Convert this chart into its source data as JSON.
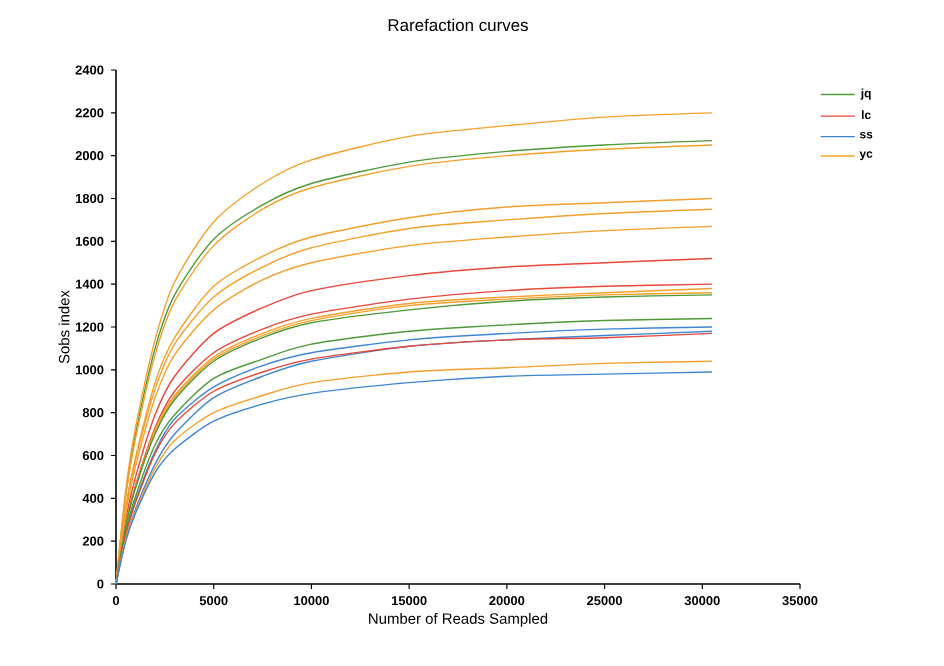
{
  "chart_data": {
    "type": "line",
    "title": "Rarefaction curves",
    "xlabel": "Number of Reads Sampled",
    "ylabel": "Sobs index",
    "x": [
      0,
      500,
      1000,
      2000,
      3000,
      5000,
      7500,
      10000,
      15000,
      20000,
      25000,
      30500
    ],
    "xlim": [
      0,
      35000
    ],
    "xticks": [
      0,
      5000,
      10000,
      15000,
      20000,
      25000,
      30000,
      35000
    ],
    "ylim": [
      0,
      2400
    ],
    "yticks": [
      0,
      200,
      400,
      600,
      800,
      1000,
      1200,
      1400,
      1600,
      1800,
      2000,
      2200,
      2400
    ],
    "grid": false,
    "legend": "top right",
    "marker": "none",
    "line_style": "solid",
    "series": [
      {
        "name": "jq",
        "color": "#4e9a3a",
        "values": [
          0,
          420,
          700,
          1100,
          1350,
          1610,
          1770,
          1870,
          1970,
          2020,
          2050,
          2070
        ]
      },
      {
        "name": "lc",
        "color": "#e8473a",
        "values": [
          0,
          300,
          500,
          790,
          970,
          1170,
          1290,
          1370,
          1440,
          1480,
          1500,
          1520
        ]
      },
      {
        "name": "ss",
        "color": "#3f86d2",
        "values": [
          0,
          240,
          390,
          620,
          770,
          920,
          1020,
          1080,
          1140,
          1170,
          1190,
          1200
        ]
      },
      {
        "name": "yc",
        "color": "#f5a02c",
        "values": [
          0,
          440,
          730,
          1140,
          1410,
          1690,
          1870,
          1980,
          2090,
          2140,
          2180,
          2200
        ]
      },
      {
        "color": "#f5a02c",
        "values": [
          0,
          410,
          680,
          1070,
          1320,
          1580,
          1750,
          1850,
          1950,
          2000,
          2030,
          2050
        ]
      },
      {
        "color": "#f5a02c",
        "values": [
          0,
          360,
          590,
          940,
          1150,
          1390,
          1530,
          1620,
          1710,
          1760,
          1780,
          1800
        ]
      },
      {
        "color": "#f5a02c",
        "values": [
          0,
          350,
          580,
          910,
          1120,
          1340,
          1480,
          1570,
          1660,
          1700,
          1730,
          1750
        ]
      },
      {
        "color": "#f5a02c",
        "values": [
          0,
          330,
          550,
          870,
          1070,
          1280,
          1420,
          1500,
          1580,
          1620,
          1650,
          1670
        ]
      },
      {
        "color": "#e8473a",
        "values": [
          0,
          280,
          460,
          730,
          900,
          1080,
          1190,
          1260,
          1330,
          1370,
          1390,
          1400
        ]
      },
      {
        "color": "#f5a02c",
        "values": [
          0,
          280,
          450,
          720,
          880,
          1060,
          1170,
          1240,
          1310,
          1340,
          1360,
          1380
        ]
      },
      {
        "color": "#f5a02c",
        "values": [
          0,
          270,
          450,
          710,
          870,
          1050,
          1160,
          1230,
          1300,
          1330,
          1350,
          1360
        ]
      },
      {
        "color": "#4e9a3a",
        "values": [
          0,
          270,
          450,
          700,
          860,
          1040,
          1150,
          1220,
          1280,
          1320,
          1340,
          1350
        ]
      },
      {
        "color": "#4e9a3a",
        "values": [
          0,
          250,
          410,
          650,
          790,
          960,
          1050,
          1120,
          1180,
          1210,
          1230,
          1240
        ]
      },
      {
        "color": "#3f86d2",
        "values": [
          0,
          210,
          350,
          560,
          700,
          870,
          970,
          1040,
          1110,
          1140,
          1160,
          1180
        ]
      },
      {
        "color": "#e8473a",
        "values": [
          0,
          230,
          380,
          610,
          750,
          900,
          990,
          1050,
          1110,
          1140,
          1150,
          1170
        ]
      },
      {
        "color": "#f5a02c",
        "values": [
          0,
          210,
          340,
          540,
          670,
          800,
          880,
          940,
          990,
          1010,
          1030,
          1040
        ]
      },
      {
        "color": "#3f86d2",
        "values": [
          0,
          200,
          330,
          520,
          630,
          760,
          840,
          890,
          940,
          970,
          980,
          990
        ]
      }
    ]
  }
}
